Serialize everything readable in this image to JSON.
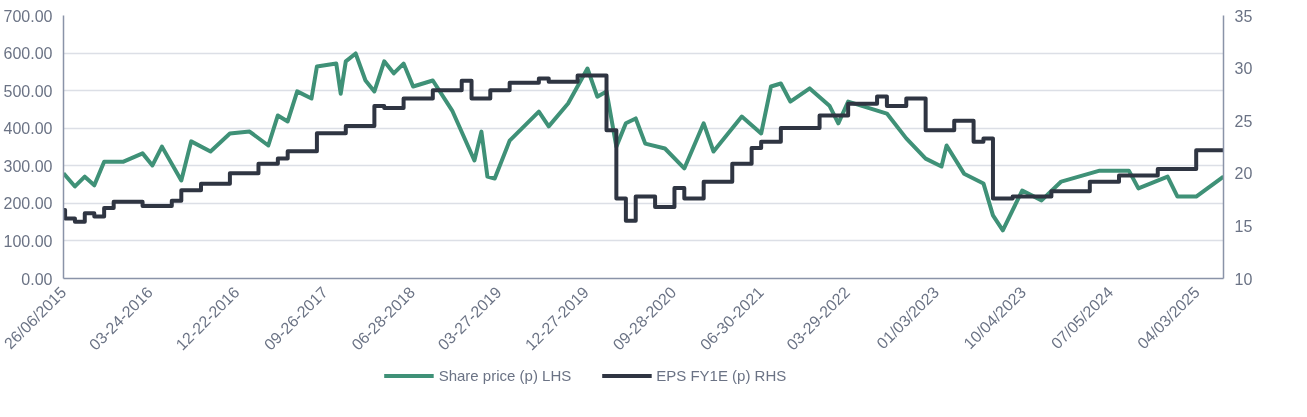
{
  "chart_data": {
    "type": "line",
    "xlim": [
      "2015-06-26",
      "2025-06-26"
    ],
    "xticks": [
      {
        "value": "2015-06-26",
        "label": "26/06/2015"
      },
      {
        "value": "2016-03-24",
        "label": "03-24-2016"
      },
      {
        "value": "2016-12-22",
        "label": "12-22-2016"
      },
      {
        "value": "2017-09-26",
        "label": "09-26-2017"
      },
      {
        "value": "2018-06-28",
        "label": "06-28-2018"
      },
      {
        "value": "2019-03-27",
        "label": "03-27-2019"
      },
      {
        "value": "2019-12-27",
        "label": "12-27-2019"
      },
      {
        "value": "2020-09-28",
        "label": "09-28-2020"
      },
      {
        "value": "2021-06-30",
        "label": "06-30-2021"
      },
      {
        "value": "2022-03-29",
        "label": "03-29-2022"
      },
      {
        "value": "2023-01-03",
        "label": "01/03/2023"
      },
      {
        "value": "2023-10-04",
        "label": "10/04/2023"
      },
      {
        "value": "2024-07-05",
        "label": "07/05/2024"
      },
      {
        "value": "2025-04-03",
        "label": "04/03/2025"
      }
    ],
    "ylim": [
      0,
      700
    ],
    "yticks": [
      {
        "value": 0,
        "label": "0.00"
      },
      {
        "value": 100,
        "label": "100.00"
      },
      {
        "value": 200,
        "label": "200.00"
      },
      {
        "value": 300,
        "label": "300.00"
      },
      {
        "value": 400,
        "label": "400.00"
      },
      {
        "value": 500,
        "label": "500.00"
      },
      {
        "value": 600,
        "label": "600.00"
      },
      {
        "value": 700,
        "label": "700.00"
      }
    ],
    "y2lim": [
      10,
      35
    ],
    "y2ticks": [
      10,
      15,
      20,
      25,
      30,
      35
    ],
    "grid": "y",
    "legend": "bottom",
    "series": [
      {
        "name": "Share price (p) LHS",
        "color": "#3f9177",
        "x": [
          "2015-06-26",
          "2015-08",
          "2015-09",
          "2015-10",
          "2015-11",
          "2016-01",
          "2016-03",
          "2016-04",
          "2016-05",
          "2016-07",
          "2016-08",
          "2016-10",
          "2016-12",
          "2017-02",
          "2017-04",
          "2017-05",
          "2017-06",
          "2017-07",
          "2017-08-15",
          "2017-09",
          "2017-11",
          "2017-11-15",
          "2017-12",
          "2018-01",
          "2018-02",
          "2018-03",
          "2018-04",
          "2018-05",
          "2018-06",
          "2018-07",
          "2018-09",
          "2018-11",
          "2019-01-10",
          "2019-02-01",
          "2019-02-20",
          "2019-03-15",
          "2019-05",
          "2019-08",
          "2019-09",
          "2019-11",
          "2020-01",
          "2020-02",
          "2020-03",
          "2020-04",
          "2020-05",
          "2020-06",
          "2020-07",
          "2020-09",
          "2020-11",
          "2021-01",
          "2021-02",
          "2021-05",
          "2021-07",
          "2021-08",
          "2021-09",
          "2021-10",
          "2021-12",
          "2022-02",
          "2022-03",
          "2022-04",
          "2022-08",
          "2022-10",
          "2022-12",
          "2023-01-20",
          "2023-02-05",
          "2023-04",
          "2023-06",
          "2023-07",
          "2023-08",
          "2023-10",
          "2023-12",
          "2024-02",
          "2024-06",
          "2024-09",
          "2024-10",
          "2025-01",
          "2025-02",
          "2025-04",
          "2025-06-26"
        ],
        "values": [
          280,
          245,
          271,
          248,
          311,
          311,
          333,
          301,
          351,
          261,
          365,
          338,
          386,
          391,
          354,
          434,
          418,
          498,
          479,
          564,
          572,
          492,
          578,
          599,
          527,
          498,
          578,
          546,
          572,
          511,
          527,
          447,
          314,
          391,
          271,
          266,
          367,
          444,
          405,
          466,
          559,
          484,
          498,
          351,
          413,
          426,
          359,
          346,
          293,
          413,
          338,
          431,
          386,
          511,
          519,
          471,
          506,
          460,
          413,
          471,
          439,
          373,
          319,
          298,
          354,
          279,
          253,
          168,
          128,
          234,
          208,
          258,
          287,
          287,
          240,
          271,
          218,
          218,
          271
        ]
      },
      {
        "name": "EPS FY1E (p) RHS",
        "color": "#2f3542",
        "type": "step",
        "axis": "y2",
        "x": [
          "2015-06-26",
          "2015-07",
          "2015-08",
          "2015-09",
          "2015-10",
          "2015-11",
          "2015-12",
          "2016-03",
          "2016-06",
          "2016-07",
          "2016-09",
          "2016-12",
          "2017-03",
          "2017-05",
          "2017-06",
          "2017-09",
          "2017-12",
          "2018-03",
          "2018-04",
          "2018-06",
          "2018-09",
          "2018-12",
          "2019-01",
          "2019-03",
          "2019-05",
          "2019-08",
          "2019-09",
          "2019-12",
          "2020-03",
          "2020-04",
          "2020-05",
          "2020-06",
          "2020-08",
          "2020-10",
          "2020-11",
          "2021-01",
          "2021-04",
          "2021-06",
          "2021-07",
          "2021-09",
          "2022-01",
          "2022-04",
          "2022-07",
          "2022-08",
          "2022-10",
          "2022-12",
          "2023-03",
          "2023-05",
          "2023-06",
          "2023-07",
          "2023-09",
          "2024-01",
          "2024-05",
          "2024-08",
          "2024-12",
          "2025-04",
          "2025-06-26"
        ],
        "values": [
          16.5,
          15.7,
          15.4,
          16.2,
          15.9,
          16.7,
          17.3,
          16.9,
          17.4,
          18.4,
          19.0,
          20.0,
          20.9,
          21.4,
          22.1,
          23.8,
          24.5,
          26.4,
          26.2,
          27.1,
          27.9,
          28.8,
          27.1,
          27.9,
          28.6,
          29.0,
          28.7,
          29.3,
          24.1,
          17.6,
          15.5,
          17.8,
          16.8,
          18.6,
          17.6,
          19.2,
          20.9,
          22.4,
          23.0,
          24.3,
          25.5,
          26.6,
          27.3,
          26.4,
          27.1,
          24.1,
          25.0,
          23.0,
          23.3,
          17.6,
          17.8,
          18.3,
          19.2,
          19.8,
          20.4,
          22.2,
          22.2
        ]
      }
    ]
  }
}
